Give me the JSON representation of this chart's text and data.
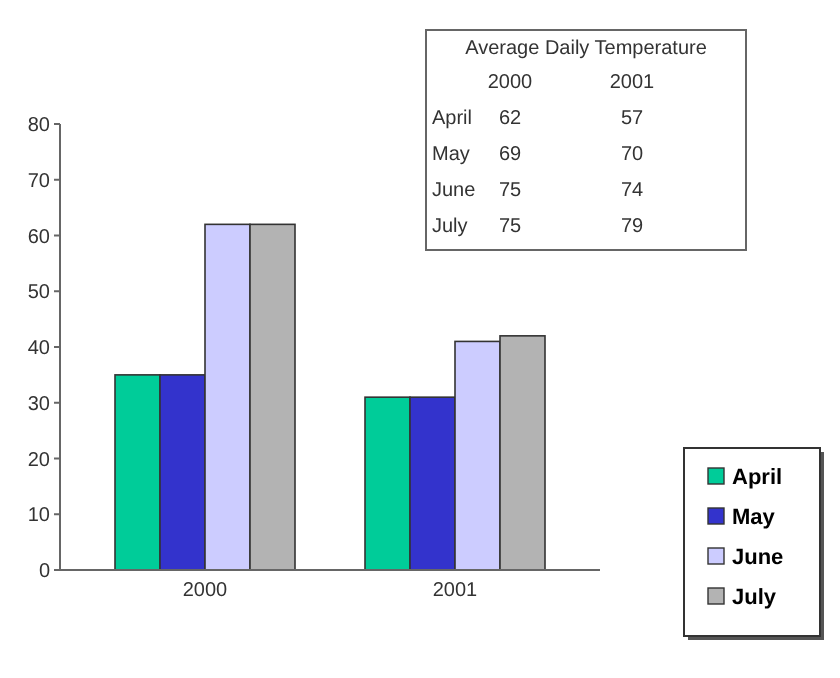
{
  "chart_data": {
    "type": "bar",
    "categories": [
      "2000",
      "2001"
    ],
    "series": [
      {
        "name": "April",
        "color": "#00cc99",
        "values": [
          35,
          31
        ]
      },
      {
        "name": "May",
        "color": "#3333cc",
        "values": [
          35,
          31
        ]
      },
      {
        "name": "June",
        "color": "#ccccff",
        "values": [
          62,
          41
        ]
      },
      {
        "name": "July",
        "color": "#b3b3b3",
        "values": [
          62,
          42
        ]
      }
    ],
    "ylim": [
      0,
      80
    ],
    "yticks": [
      0,
      10,
      20,
      30,
      40,
      50,
      60,
      70,
      80
    ],
    "grid": false,
    "legend": "bottom right",
    "annotations": [
      "Average Daily Temperature",
      "2000",
      "2001",
      "April",
      "62",
      "57",
      "May",
      "69",
      "70",
      "June",
      "75",
      "74",
      "July",
      "75",
      "79"
    ]
  }
}
